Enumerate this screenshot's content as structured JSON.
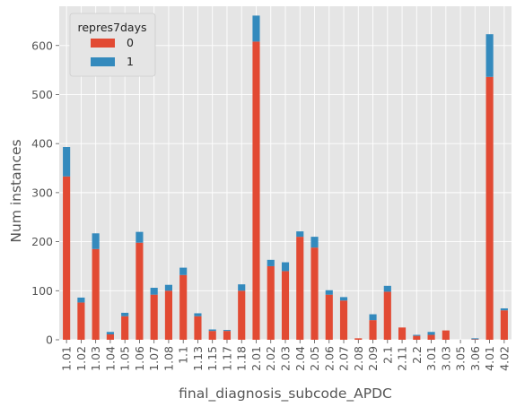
{
  "chart_data": {
    "type": "bar",
    "stacked": true,
    "categories": [
      "1.01",
      "1.02",
      "1.03",
      "1.04",
      "1.05",
      "1.06",
      "1.07",
      "1.08",
      "1.1",
      "1.13",
      "1.15",
      "1.17",
      "1.18",
      "2.01",
      "2.02",
      "2.03",
      "2.04",
      "2.05",
      "2.06",
      "2.07",
      "2.08",
      "2.09",
      "2.1",
      "2.11",
      "2.2",
      "3.01",
      "3.03",
      "3.05",
      "3.06",
      "4.01",
      "4.02"
    ],
    "series": [
      {
        "name": "0",
        "color": "#E24A33",
        "values": [
          333,
          76,
          185,
          11,
          48,
          198,
          92,
          100,
          132,
          48,
          18,
          18,
          100,
          608,
          150,
          140,
          210,
          188,
          92,
          80,
          3,
          40,
          98,
          25,
          8,
          10,
          19,
          0,
          1,
          536,
          60
        ]
      },
      {
        "name": "1",
        "color": "#348ABD",
        "values": [
          60,
          10,
          32,
          5,
          7,
          22,
          14,
          12,
          15,
          6,
          3,
          2,
          13,
          53,
          13,
          18,
          11,
          22,
          9,
          7,
          0,
          12,
          12,
          0,
          2,
          6,
          0,
          0,
          2,
          87,
          4
        ]
      }
    ],
    "xlabel": "final_diagnosis_subcode_APDC",
    "ylabel": "Num instances",
    "ylim": [
      0,
      680
    ],
    "yticks": [
      0,
      100,
      200,
      300,
      400,
      500,
      600
    ],
    "grid": true,
    "legend": {
      "title": "repres7days",
      "placement": "top-left"
    },
    "style": "ggplot"
  }
}
